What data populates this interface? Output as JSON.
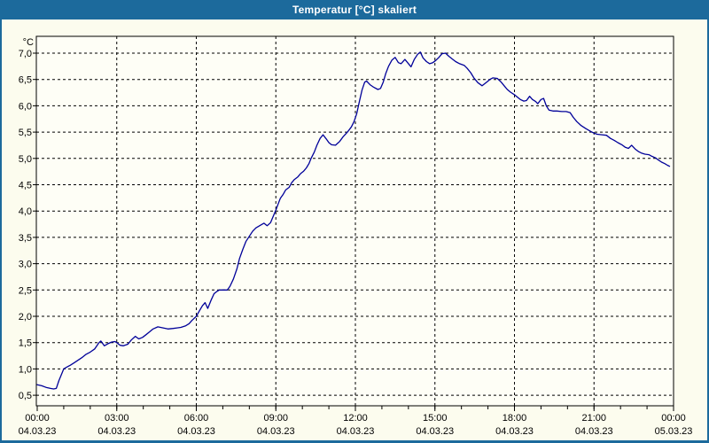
{
  "window": {
    "title": "Temperatur [°C] skaliert"
  },
  "colors": {
    "titlebar_bg": "#1c6a9c",
    "titlebar_text": "#ffffff",
    "window_bg": "#fcfcee",
    "plot_bg": "#fefef6",
    "grid": "#000000",
    "axis": "#000000",
    "label_text": "#000000",
    "line": "#000099"
  },
  "chart_data": {
    "type": "line",
    "title": "Temperatur [°C] skaliert",
    "grid": "dashed",
    "legend": "none",
    "y_axis": {
      "unit": "°C",
      "tick_values": [
        0.5,
        1.0,
        1.5,
        2.0,
        2.5,
        3.0,
        3.5,
        4.0,
        4.5,
        5.0,
        5.5,
        6.0,
        6.5,
        7.0
      ],
      "tick_labels": [
        "0,5",
        "1,0",
        "1,5",
        "2,0",
        "2,5",
        "3,0",
        "3,5",
        "4,0",
        "4,5",
        "5,0",
        "5,5",
        "6,0",
        "6,5",
        "7,0"
      ],
      "ylim": [
        0.3,
        7.32
      ]
    },
    "x_axis": {
      "xlim_hours": [
        0,
        24
      ],
      "minor_tick_interval_hours": 1,
      "major_tick_hours": [
        0,
        3,
        6,
        9,
        12,
        15,
        18,
        21,
        24
      ],
      "time_labels": [
        "00:00",
        "03:00",
        "06:00",
        "09:00",
        "12:00",
        "15:00",
        "18:00",
        "21:00",
        "00:00"
      ],
      "date_labels": [
        "04.03.23",
        "04.03.23",
        "04.03.23",
        "04.03.23",
        "04.03.23",
        "04.03.23",
        "04.03.23",
        "04.03.23",
        "05.03.23"
      ]
    },
    "series": [
      {
        "name": "Temperatur",
        "color": "#000099",
        "points_hours_degC": [
          [
            0,
            0.7
          ],
          [
            0.17,
            0.68
          ],
          [
            0.33,
            0.65
          ],
          [
            0.5,
            0.63
          ],
          [
            0.62,
            0.62
          ],
          [
            0.72,
            0.63
          ],
          [
            0.82,
            0.78
          ],
          [
            0.92,
            0.9
          ],
          [
            1.0,
            1.0
          ],
          [
            1.1,
            1.03
          ],
          [
            1.25,
            1.07
          ],
          [
            1.4,
            1.12
          ],
          [
            1.55,
            1.17
          ],
          [
            1.7,
            1.22
          ],
          [
            1.85,
            1.28
          ],
          [
            2.0,
            1.32
          ],
          [
            2.17,
            1.38
          ],
          [
            2.33,
            1.5
          ],
          [
            2.4,
            1.53
          ],
          [
            2.53,
            1.44
          ],
          [
            2.67,
            1.48
          ],
          [
            2.8,
            1.51
          ],
          [
            2.93,
            1.52
          ],
          [
            3.0,
            1.5
          ],
          [
            3.13,
            1.45
          ],
          [
            3.25,
            1.44
          ],
          [
            3.42,
            1.47
          ],
          [
            3.55,
            1.55
          ],
          [
            3.7,
            1.62
          ],
          [
            3.83,
            1.57
          ],
          [
            3.97,
            1.6
          ],
          [
            4.1,
            1.65
          ],
          [
            4.23,
            1.7
          ],
          [
            4.37,
            1.76
          ],
          [
            4.55,
            1.8
          ],
          [
            4.75,
            1.78
          ],
          [
            4.93,
            1.76
          ],
          [
            5.13,
            1.77
          ],
          [
            5.27,
            1.78
          ],
          [
            5.42,
            1.79
          ],
          [
            5.6,
            1.82
          ],
          [
            5.73,
            1.86
          ],
          [
            5.83,
            1.92
          ],
          [
            6.0,
            2.0
          ],
          [
            6.1,
            2.09
          ],
          [
            6.23,
            2.2
          ],
          [
            6.33,
            2.26
          ],
          [
            6.43,
            2.15
          ],
          [
            6.55,
            2.3
          ],
          [
            6.67,
            2.43
          ],
          [
            6.77,
            2.47
          ],
          [
            6.87,
            2.5
          ],
          [
            7.17,
            2.5
          ],
          [
            7.27,
            2.57
          ],
          [
            7.4,
            2.71
          ],
          [
            7.53,
            2.9
          ],
          [
            7.63,
            3.1
          ],
          [
            7.75,
            3.27
          ],
          [
            7.87,
            3.42
          ],
          [
            8.0,
            3.52
          ],
          [
            8.13,
            3.62
          ],
          [
            8.25,
            3.68
          ],
          [
            8.42,
            3.73
          ],
          [
            8.55,
            3.77
          ],
          [
            8.67,
            3.72
          ],
          [
            8.8,
            3.78
          ],
          [
            8.9,
            3.9
          ],
          [
            9.0,
            4.02
          ],
          [
            9.1,
            4.15
          ],
          [
            9.17,
            4.24
          ],
          [
            9.28,
            4.32
          ],
          [
            9.37,
            4.4
          ],
          [
            9.5,
            4.45
          ],
          [
            9.6,
            4.54
          ],
          [
            9.7,
            4.6
          ],
          [
            9.83,
            4.65
          ],
          [
            9.93,
            4.71
          ],
          [
            10.05,
            4.76
          ],
          [
            10.15,
            4.82
          ],
          [
            10.25,
            4.9
          ],
          [
            10.33,
            5.0
          ],
          [
            10.45,
            5.12
          ],
          [
            10.55,
            5.25
          ],
          [
            10.67,
            5.38
          ],
          [
            10.78,
            5.45
          ],
          [
            10.9,
            5.37
          ],
          [
            11.0,
            5.3
          ],
          [
            11.1,
            5.26
          ],
          [
            11.25,
            5.25
          ],
          [
            11.4,
            5.32
          ],
          [
            11.55,
            5.42
          ],
          [
            11.7,
            5.5
          ],
          [
            11.85,
            5.6
          ],
          [
            11.95,
            5.7
          ],
          [
            12.05,
            5.85
          ],
          [
            12.15,
            6.08
          ],
          [
            12.25,
            6.3
          ],
          [
            12.35,
            6.45
          ],
          [
            12.42,
            6.47
          ],
          [
            12.55,
            6.4
          ],
          [
            12.7,
            6.35
          ],
          [
            12.85,
            6.31
          ],
          [
            12.95,
            6.33
          ],
          [
            13.05,
            6.45
          ],
          [
            13.15,
            6.62
          ],
          [
            13.25,
            6.75
          ],
          [
            13.38,
            6.87
          ],
          [
            13.5,
            6.92
          ],
          [
            13.62,
            6.82
          ],
          [
            13.72,
            6.8
          ],
          [
            13.87,
            6.88
          ],
          [
            13.97,
            6.82
          ],
          [
            14.1,
            6.74
          ],
          [
            14.22,
            6.88
          ],
          [
            14.35,
            6.98
          ],
          [
            14.45,
            7.02
          ],
          [
            14.55,
            6.91
          ],
          [
            14.68,
            6.84
          ],
          [
            14.8,
            6.8
          ],
          [
            14.92,
            6.82
          ],
          [
            15.03,
            6.86
          ],
          [
            15.15,
            6.92
          ],
          [
            15.27,
            6.99
          ],
          [
            15.4,
            7.0
          ],
          [
            15.53,
            6.94
          ],
          [
            15.65,
            6.89
          ],
          [
            15.78,
            6.84
          ],
          [
            15.93,
            6.8
          ],
          [
            16.1,
            6.77
          ],
          [
            16.22,
            6.71
          ],
          [
            16.35,
            6.63
          ],
          [
            16.47,
            6.53
          ],
          [
            16.62,
            6.44
          ],
          [
            16.78,
            6.38
          ],
          [
            16.95,
            6.45
          ],
          [
            17.07,
            6.5
          ],
          [
            17.18,
            6.53
          ],
          [
            17.35,
            6.52
          ],
          [
            17.5,
            6.45
          ],
          [
            17.63,
            6.37
          ],
          [
            17.73,
            6.31
          ],
          [
            17.85,
            6.26
          ],
          [
            18.0,
            6.21
          ],
          [
            18.12,
            6.16
          ],
          [
            18.22,
            6.12
          ],
          [
            18.35,
            6.09
          ],
          [
            18.45,
            6.1
          ],
          [
            18.57,
            6.18
          ],
          [
            18.68,
            6.12
          ],
          [
            18.8,
            6.08
          ],
          [
            18.88,
            6.04
          ],
          [
            19.0,
            6.12
          ],
          [
            19.1,
            6.14
          ],
          [
            19.2,
            6.0
          ],
          [
            19.3,
            5.92
          ],
          [
            19.45,
            5.9
          ],
          [
            19.6,
            5.9
          ],
          [
            19.78,
            5.89
          ],
          [
            19.95,
            5.89
          ],
          [
            20.1,
            5.87
          ],
          [
            20.22,
            5.78
          ],
          [
            20.35,
            5.7
          ],
          [
            20.5,
            5.63
          ],
          [
            20.68,
            5.57
          ],
          [
            20.85,
            5.52
          ],
          [
            21.0,
            5.48
          ],
          [
            21.12,
            5.46
          ],
          [
            21.3,
            5.45
          ],
          [
            21.47,
            5.44
          ],
          [
            21.62,
            5.38
          ],
          [
            21.77,
            5.34
          ],
          [
            21.9,
            5.3
          ],
          [
            22.05,
            5.26
          ],
          [
            22.18,
            5.21
          ],
          [
            22.3,
            5.19
          ],
          [
            22.42,
            5.25
          ],
          [
            22.55,
            5.18
          ],
          [
            22.68,
            5.13
          ],
          [
            22.8,
            5.1
          ],
          [
            22.92,
            5.08
          ],
          [
            23.07,
            5.07
          ],
          [
            23.18,
            5.04
          ],
          [
            23.32,
            5.01
          ],
          [
            23.43,
            4.97
          ],
          [
            23.55,
            4.93
          ],
          [
            23.67,
            4.9
          ],
          [
            23.77,
            4.87
          ],
          [
            23.85,
            4.85
          ]
        ]
      }
    ]
  }
}
